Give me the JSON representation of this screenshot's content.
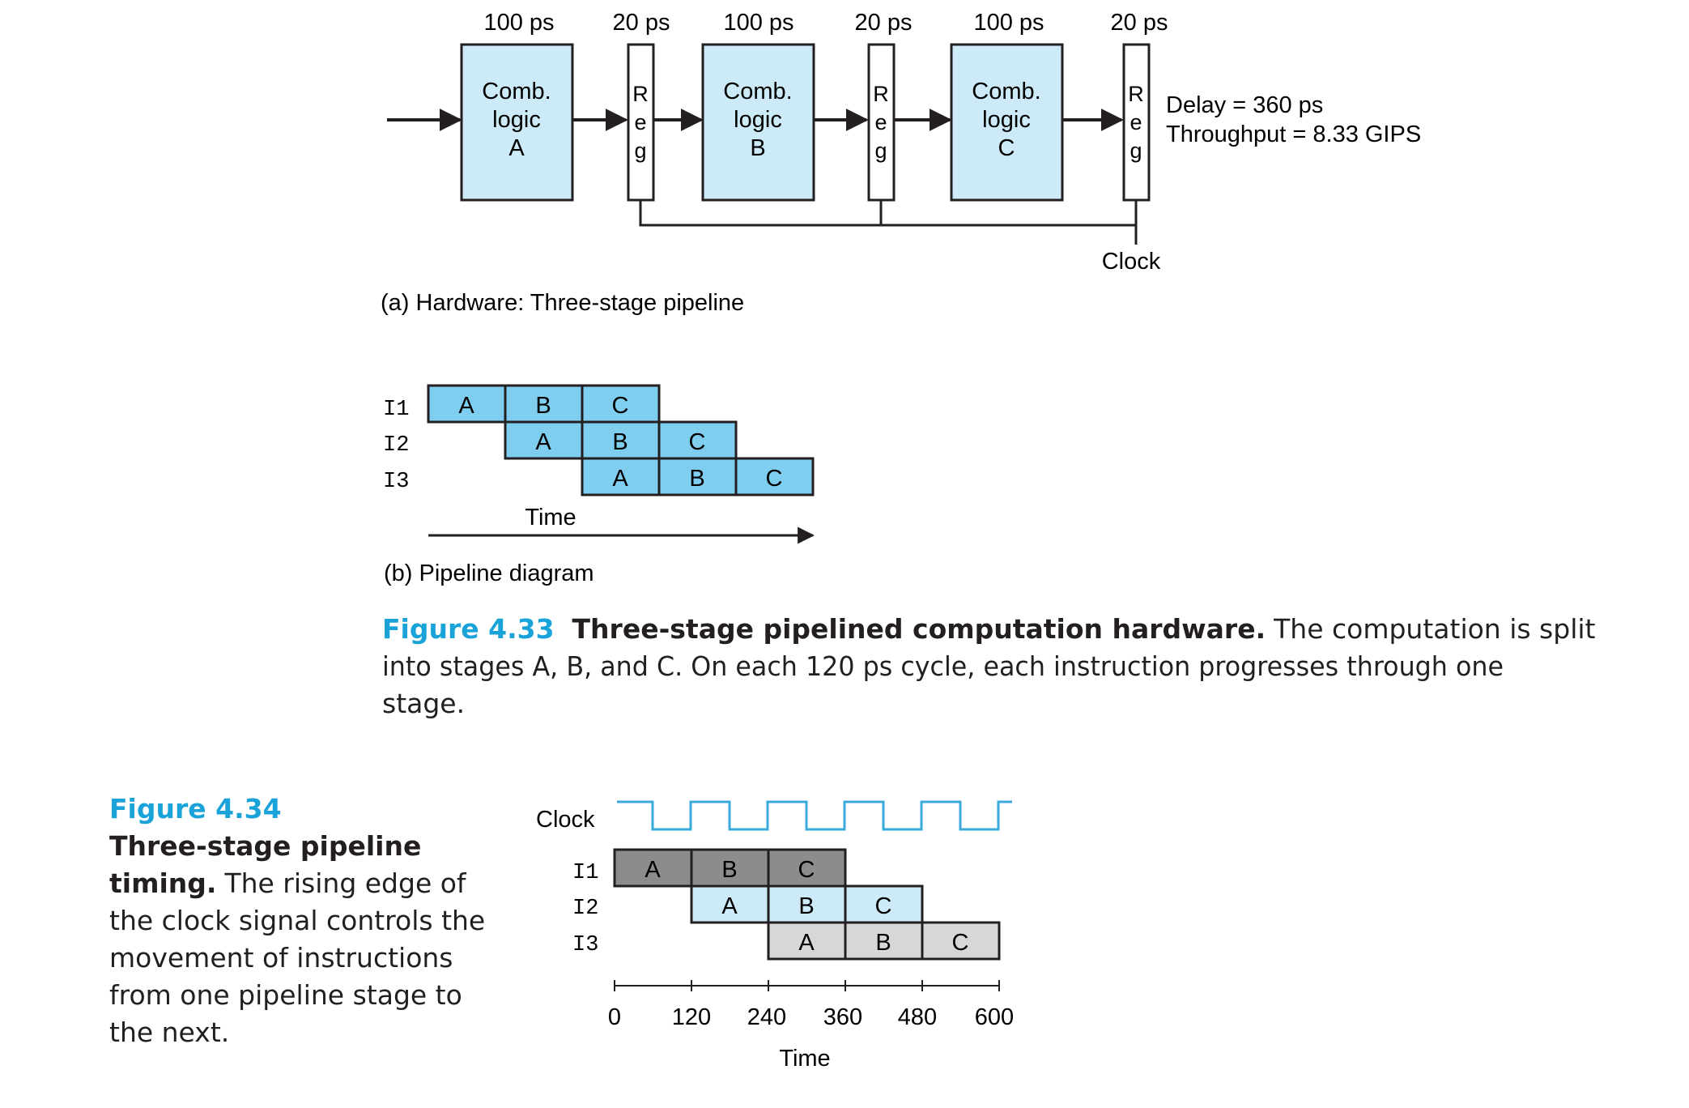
{
  "colors": {
    "stroke": "#231f20",
    "light_blue": "#cdeaf8",
    "cyan": "#7fcef0",
    "dark_gray": "#8c8c8c",
    "light_gray": "#d7d7d7",
    "accent": "#1aa3d9",
    "clock": "#3aa9dc"
  },
  "hardware": {
    "timings": [
      "100 ps",
      "20 ps",
      "100 ps",
      "20 ps",
      "100 ps",
      "20 ps"
    ],
    "comb_blocks": [
      {
        "lines": [
          "Comb.",
          "logic",
          "A"
        ]
      },
      {
        "lines": [
          "Comb.",
          "logic",
          "B"
        ]
      },
      {
        "lines": [
          "Comb.",
          "logic",
          "C"
        ]
      }
    ],
    "reg_letters": [
      "R",
      "e",
      "g"
    ],
    "delay_text": "Delay = 360 ps",
    "throughput_text": "Throughput = 8.33 GIPS",
    "clock_label": "Clock",
    "caption": "(a) Hardware: Three-stage pipeline"
  },
  "pipeline_b": {
    "rows": [
      {
        "label": "I1",
        "stages": [
          "A",
          "B",
          "C"
        ]
      },
      {
        "label": "I2",
        "stages": [
          "A",
          "B",
          "C"
        ]
      },
      {
        "label": "I3",
        "stages": [
          "A",
          "B",
          "C"
        ]
      }
    ],
    "time_label": "Time",
    "caption": "(b) Pipeline diagram"
  },
  "figure_433": {
    "number": "Figure 4.33",
    "title": "Three-stage pipelined computation hardware.",
    "body_line1": "The computation is split",
    "body_line2": "into stages A, B, and C. On each 120 ps cycle, each instruction progresses through one",
    "body_line3": "stage."
  },
  "figure_434": {
    "number": "Figure 4.34",
    "title_line1": "Three-stage pipeline",
    "title_line2": "timing.",
    "body_line1": "The rising edge of",
    "body_line2": "the clock signal controls the",
    "body_line3": "movement of instructions",
    "body_line4": "from one pipeline stage to",
    "body_line5": "the next.",
    "clock_label": "Clock",
    "rows": [
      {
        "label": "I1",
        "stages": [
          "A",
          "B",
          "C"
        ]
      },
      {
        "label": "I2",
        "stages": [
          "A",
          "B",
          "C"
        ]
      },
      {
        "label": "I3",
        "stages": [
          "A",
          "B",
          "C"
        ]
      }
    ],
    "ticks": [
      "0",
      "120",
      "240",
      "360",
      "480",
      "600"
    ],
    "time_label": "Time"
  }
}
